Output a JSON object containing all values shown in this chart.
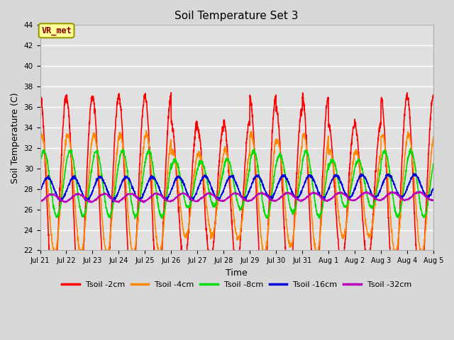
{
  "title": "Soil Temperature Set 3",
  "xlabel": "Time",
  "ylabel": "Soil Temperature (C)",
  "ylim": [
    22,
    44
  ],
  "yticks": [
    22,
    24,
    26,
    28,
    30,
    32,
    34,
    36,
    38,
    40,
    42,
    44
  ],
  "fig_bg_color": "#d8d8d8",
  "plot_bg_color": "#e0e0e0",
  "grid_color": "#ffffff",
  "annotation_text": "VR_met",
  "annotation_bg": "#ffff99",
  "annotation_border": "#999900",
  "series": [
    {
      "label": "Tsoil -2cm",
      "color": "#ff0000",
      "lw": 1.2
    },
    {
      "label": "Tsoil -4cm",
      "color": "#ff8800",
      "lw": 1.2
    },
    {
      "label": "Tsoil -8cm",
      "color": "#00dd00",
      "lw": 1.2
    },
    {
      "label": "Tsoil -16cm",
      "color": "#0000dd",
      "lw": 1.2
    },
    {
      "label": "Tsoil -32cm",
      "color": "#bb00bb",
      "lw": 1.2
    }
  ],
  "x_tick_labels": [
    "Jul 21",
    "Jul 22",
    "Jul 23",
    "Jul 24",
    "Jul 25",
    "Jul 26",
    "Jul 27",
    "Jul 28",
    "Jul 29",
    "Jul 30",
    "Jul 31",
    "Aug 1",
    "Aug 2",
    "Aug 3",
    "Aug 4",
    "Aug 5"
  ],
  "n_days": 15,
  "pts_per_day": 144
}
